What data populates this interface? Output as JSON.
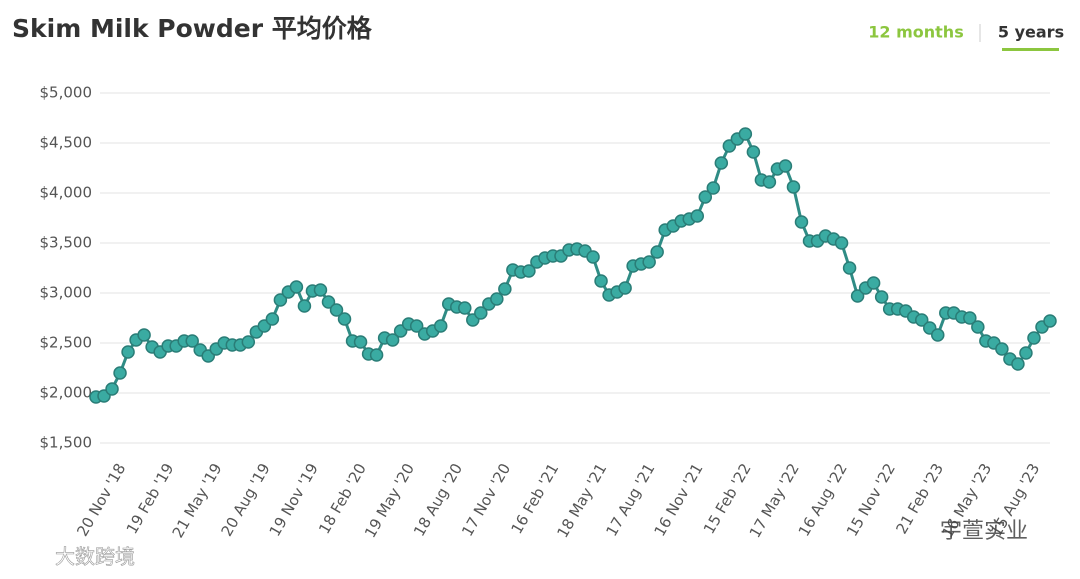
{
  "chart_data": {
    "type": "line",
    "title": "Skim Milk Powder 平均价格",
    "range_buttons": [
      "12 months",
      "5 years"
    ],
    "active_range": 1,
    "watermarks": [
      "大数跨境",
      "宇萱实业"
    ],
    "color": "#3aaba2",
    "grid": true,
    "ylim": [
      1500,
      5000
    ],
    "yticks": [
      {
        "value": 1500,
        "label": "$1,500"
      },
      {
        "value": 2000,
        "label": "$2,000"
      },
      {
        "value": 2500,
        "label": "$2,500"
      },
      {
        "value": 3000,
        "label": "$3,000"
      },
      {
        "value": 3500,
        "label": "$3,500"
      },
      {
        "value": 4000,
        "label": "$4,000"
      },
      {
        "value": 4500,
        "label": "$4,500"
      },
      {
        "value": 5000,
        "label": "$5,000"
      }
    ],
    "categories": [
      null,
      null,
      null,
      "20 Nov '18",
      null,
      null,
      null,
      null,
      null,
      "19 Feb '19",
      null,
      null,
      null,
      null,
      null,
      "21 May '19",
      null,
      null,
      null,
      null,
      null,
      "20 Aug '19",
      null,
      null,
      null,
      null,
      null,
      "19 Nov '19",
      null,
      null,
      null,
      null,
      null,
      "18 Feb '20",
      null,
      null,
      null,
      null,
      null,
      "19 May '20",
      null,
      null,
      null,
      null,
      null,
      "18 Aug '20",
      null,
      null,
      null,
      null,
      null,
      "17 Nov '20",
      null,
      null,
      null,
      null,
      null,
      "16 Feb '21",
      null,
      null,
      null,
      null,
      null,
      "18 May '21",
      null,
      null,
      null,
      null,
      null,
      "17 Aug '21",
      null,
      null,
      null,
      null,
      null,
      "16 Nov '21",
      null,
      null,
      null,
      null,
      null,
      "15 Feb '22",
      null,
      null,
      null,
      null,
      null,
      "17 May '22",
      null,
      null,
      null,
      null,
      null,
      "16 Aug '22",
      null,
      null,
      null,
      null,
      null,
      "15 Nov '22",
      null,
      null,
      null,
      null,
      null,
      "21 Feb '23",
      null,
      null,
      null,
      null,
      null,
      "16 May '23",
      null,
      null,
      null,
      null,
      null,
      "15 Aug '23",
      null,
      null
    ],
    "values": [
      1960,
      1970,
      2040,
      2200,
      2410,
      2530,
      2580,
      2460,
      2410,
      2470,
      2470,
      2520,
      2520,
      2430,
      2370,
      2440,
      2500,
      2480,
      2480,
      2510,
      2610,
      2670,
      2740,
      2930,
      3010,
      3060,
      2870,
      3020,
      3030,
      2910,
      2830,
      2740,
      2520,
      2510,
      2390,
      2380,
      2550,
      2530,
      2620,
      2690,
      2670,
      2590,
      2620,
      2670,
      2890,
      2860,
      2850,
      2730,
      2800,
      2890,
      2940,
      3040,
      3230,
      3210,
      3220,
      3310,
      3350,
      3370,
      3370,
      3430,
      3440,
      3420,
      3360,
      3120,
      2980,
      3010,
      3050,
      3270,
      3290,
      3310,
      3410,
      3630,
      3670,
      3720,
      3740,
      3770,
      3960,
      4050,
      4300,
      4470,
      4540,
      4590,
      4410,
      4130,
      4110,
      4240,
      4270,
      4060,
      3710,
      3520,
      3520,
      3570,
      3540,
      3500,
      3250,
      2970,
      3050,
      3100,
      2960,
      2840,
      2840,
      2820,
      2760,
      2730,
      2650,
      2580,
      2800,
      2800,
      2760,
      2750,
      2660,
      2520,
      2500,
      2440,
      2340,
      2290,
      2400,
      2550,
      2660,
      2720
    ]
  }
}
